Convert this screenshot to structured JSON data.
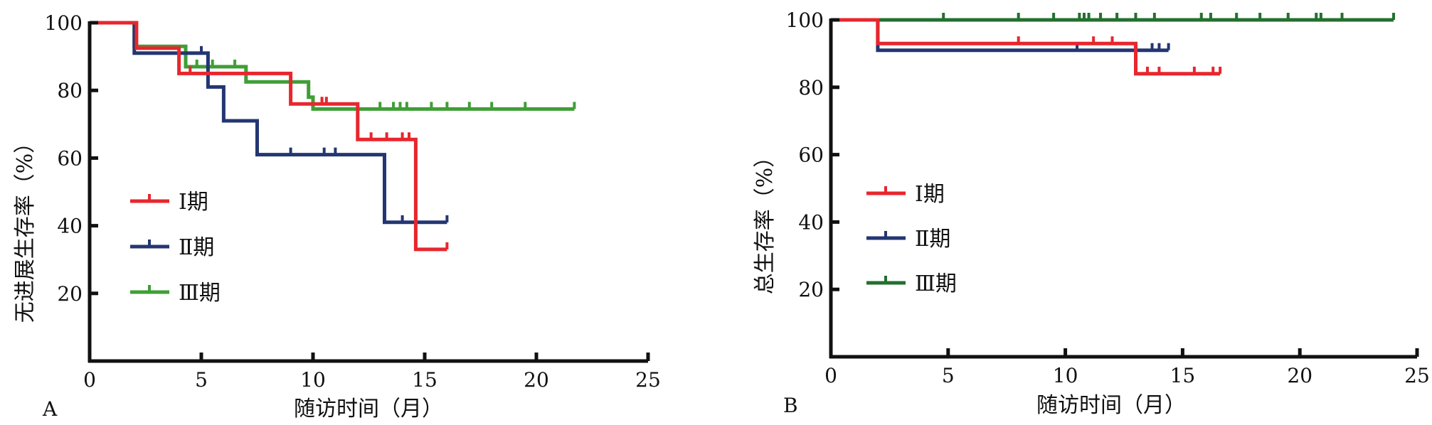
{
  "colors": {
    "I": "#e8262d",
    "II": "#243672",
    "III_A": "#3f9e36",
    "III_B": "#23702f",
    "axis": "#111111"
  },
  "chart_data": [
    {
      "type": "line",
      "step": true,
      "panel_label": "A",
      "xlabel": "随访时间（月）",
      "ylabel": "无进展生存率（%）",
      "xlim": [
        0,
        25
      ],
      "ylim": [
        0,
        100
      ],
      "xticks": [
        "0",
        "5",
        "10",
        "15",
        "20",
        "25"
      ],
      "yticks": [
        "20",
        "40",
        "60",
        "80",
        "100"
      ],
      "legend_position": "left-middle",
      "series": [
        {
          "name": "Ⅰ期",
          "color": "#e8262d",
          "x": [
            0,
            2.1,
            2.1,
            4.0,
            4.0,
            9.0,
            9.0,
            12.0,
            12.0,
            14.6,
            14.6,
            16.0
          ],
          "y": [
            100,
            100,
            92.5,
            92.5,
            85,
            85,
            76,
            76,
            65.5,
            65.5,
            33,
            33
          ],
          "censor_x": [
            4.5,
            10.4,
            10.6,
            12.6,
            13.3,
            14.0,
            14.3,
            16.0
          ]
        },
        {
          "name": "Ⅱ期",
          "color": "#243672",
          "x": [
            0,
            2.0,
            2.0,
            5.3,
            5.3,
            6.0,
            6.0,
            7.5,
            7.5,
            13.2,
            13.2,
            16.0
          ],
          "y": [
            100,
            100,
            91,
            91,
            81,
            81,
            71,
            71,
            61,
            61,
            41,
            41
          ],
          "censor_x": [
            5.0,
            9.0,
            10.5,
            11.0,
            14.0,
            16.0
          ]
        },
        {
          "name": "Ⅲ期",
          "color": "#3f9e36",
          "x": [
            0,
            2.0,
            2.0,
            4.3,
            4.3,
            7.0,
            7.0,
            9.8,
            9.8,
            10.0,
            10.0,
            21.7
          ],
          "y": [
            100,
            100,
            93,
            93,
            87,
            87,
            82.5,
            82.5,
            78,
            78,
            74.5,
            74.5
          ],
          "censor_x": [
            4.8,
            5.5,
            6.5,
            10.0,
            13.0,
            13.6,
            13.9,
            14.2,
            15.3,
            16.0,
            17.0,
            18.0,
            19.5,
            21.7
          ]
        }
      ]
    },
    {
      "type": "line",
      "step": true,
      "panel_label": "B",
      "xlabel": "随访时间（月）",
      "ylabel": "总生存率（%）",
      "xlim": [
        0,
        25
      ],
      "ylim": [
        0,
        100
      ],
      "xticks": [
        "0",
        "5",
        "10",
        "15",
        "20",
        "25"
      ],
      "yticks": [
        "20",
        "40",
        "60",
        "80",
        "100"
      ],
      "legend_position": "left-middle",
      "series": [
        {
          "name": "Ⅰ期",
          "color": "#e8262d",
          "x": [
            0,
            2.0,
            2.0,
            13.0,
            13.0,
            16.6
          ],
          "y": [
            100,
            100,
            93,
            93,
            84,
            84
          ],
          "censor_x": [
            8.0,
            11.2,
            12.0,
            13.5,
            14.0,
            15.5,
            16.3,
            16.6
          ]
        },
        {
          "name": "Ⅱ期",
          "color": "#243672",
          "x": [
            0,
            2.0,
            2.0,
            14.4
          ],
          "y": [
            100,
            100,
            91,
            91
          ],
          "censor_x": [
            10.5,
            13.7,
            14.0,
            14.4
          ]
        },
        {
          "name": "Ⅲ期",
          "color": "#23702f",
          "x": [
            0,
            24.0
          ],
          "y": [
            100,
            100
          ],
          "censor_x": [
            4.8,
            8.0,
            9.5,
            10.6,
            10.8,
            11.0,
            11.5,
            12.2,
            13.0,
            13.8,
            15.8,
            16.2,
            17.3,
            18.3,
            19.5,
            20.7,
            20.9,
            21.8,
            24.0
          ]
        }
      ]
    }
  ]
}
